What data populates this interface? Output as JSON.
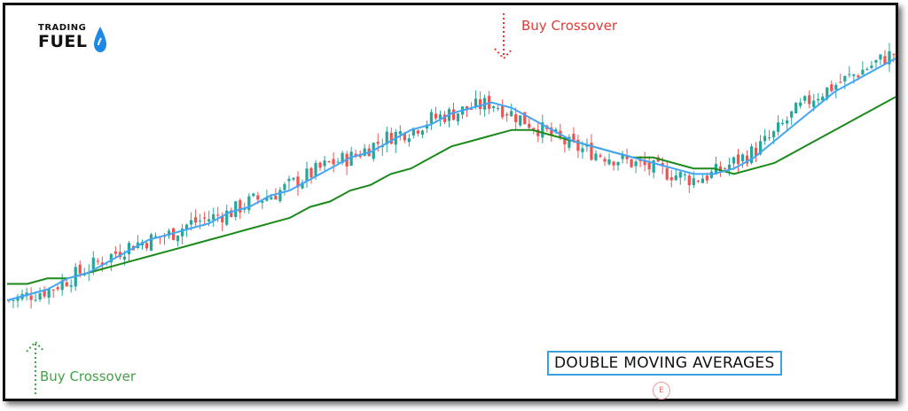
{
  "logo": {
    "top": "TRADING",
    "bottom": "FUEL"
  },
  "annotations": {
    "top_signal": "Buy Crossover",
    "bottom_signal": "Buy Crossover"
  },
  "title_box": "DOUBLE MOVING AVERAGES",
  "watermark": "E",
  "colors": {
    "bull": "#26a69a",
    "bear": "#ef5350",
    "fast_ma": "#42a5f5",
    "slow_ma": "#1b8a1b",
    "top_signal": "#e53935",
    "bottom_signal": "#43a047",
    "title_border": "#3aa0e0"
  },
  "chart_data": {
    "type": "line",
    "grid": false,
    "legend": "none",
    "xlabel": "",
    "ylabel": "",
    "series": [
      {
        "values": [
          69,
          70,
          71,
          73,
          74,
          76,
          78,
          80,
          81,
          82,
          83,
          85,
          86,
          88,
          89,
          91,
          93,
          95,
          96,
          98,
          100,
          101,
          103,
          104,
          105,
          104,
          102,
          100,
          98,
          97,
          96,
          95,
          94,
          93,
          92,
          92,
          93,
          95,
          98,
          101,
          104,
          107,
          109,
          111,
          113
        ]
      },
      {
        "values": [
          72,
          72,
          73,
          73,
          74,
          75,
          76,
          77,
          78,
          79,
          80,
          81,
          82,
          83,
          84,
          86,
          87,
          89,
          90,
          92,
          93,
          95,
          97,
          98,
          99,
          100,
          100,
          99,
          98,
          97,
          96,
          95,
          95,
          94,
          93,
          93,
          92,
          93,
          94,
          96,
          98,
          100,
          102,
          104,
          106
        ]
      }
    ],
    "candles_close": [
      69,
      70,
      71,
      73,
      75,
      77,
      79,
      80,
      81,
      83,
      84,
      85,
      87,
      88,
      90,
      92,
      94,
      95,
      97,
      99,
      100,
      102,
      103,
      104,
      105,
      103,
      101,
      99,
      97,
      96,
      95,
      94,
      93,
      92,
      91,
      92,
      94,
      96,
      99,
      103,
      106,
      108,
      110,
      112,
      114
    ]
  }
}
